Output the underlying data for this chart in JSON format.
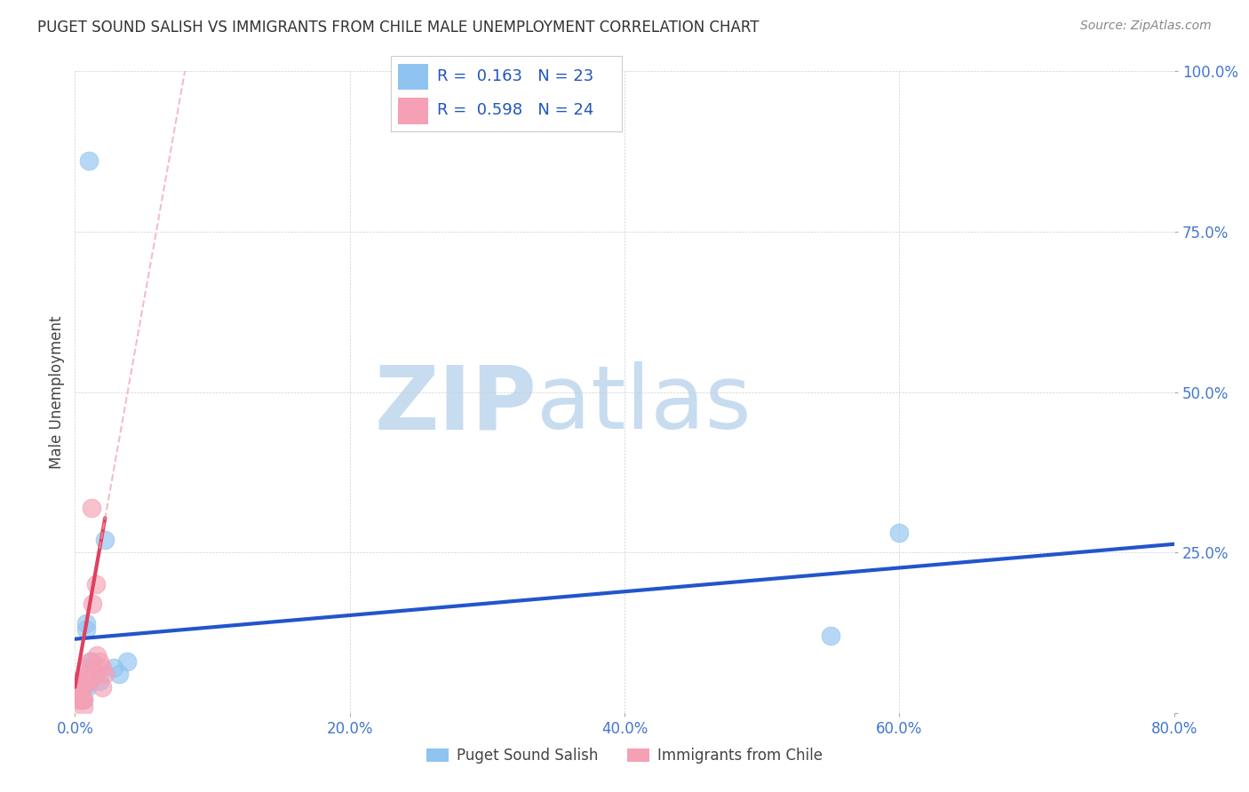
{
  "title": "PUGET SOUND SALISH VS IMMIGRANTS FROM CHILE MALE UNEMPLOYMENT CORRELATION CHART",
  "source": "Source: ZipAtlas.com",
  "ylabel": "Male Unemployment",
  "legend_bottom": [
    "Puget Sound Salish",
    "Immigrants from Chile"
  ],
  "r_blue": 0.163,
  "n_blue": 23,
  "r_pink": 0.598,
  "n_pink": 24,
  "xlim": [
    0.0,
    0.8
  ],
  "ylim": [
    0.0,
    1.0
  ],
  "xticks": [
    0.0,
    0.2,
    0.4,
    0.6,
    0.8
  ],
  "yticks": [
    0.0,
    0.25,
    0.5,
    0.75,
    1.0
  ],
  "ytick_labels": [
    "",
    "25.0%",
    "50.0%",
    "75.0%",
    "100.0%"
  ],
  "xtick_labels": [
    "0.0%",
    "20.0%",
    "40.0%",
    "60.0%",
    "80.0%"
  ],
  "blue_scatter_x": [
    0.01,
    0.003,
    0.004,
    0.005,
    0.006,
    0.003,
    0.006,
    0.007,
    0.008,
    0.008,
    0.009,
    0.01,
    0.011,
    0.012,
    0.013,
    0.015,
    0.018,
    0.022,
    0.028,
    0.032,
    0.038,
    0.6,
    0.55
  ],
  "blue_scatter_y": [
    0.86,
    0.03,
    0.02,
    0.04,
    0.02,
    0.05,
    0.04,
    0.05,
    0.13,
    0.14,
    0.04,
    0.06,
    0.05,
    0.08,
    0.07,
    0.06,
    0.05,
    0.27,
    0.07,
    0.06,
    0.08,
    0.28,
    0.12
  ],
  "pink_scatter_x": [
    0.003,
    0.004,
    0.005,
    0.006,
    0.002,
    0.003,
    0.004,
    0.005,
    0.006,
    0.007,
    0.008,
    0.008,
    0.009,
    0.01,
    0.011,
    0.012,
    0.013,
    0.015,
    0.016,
    0.018,
    0.02,
    0.022,
    0.02,
    0.015
  ],
  "pink_scatter_y": [
    0.04,
    0.03,
    0.02,
    0.01,
    0.05,
    0.02,
    0.03,
    0.04,
    0.02,
    0.05,
    0.05,
    0.07,
    0.06,
    0.05,
    0.08,
    0.32,
    0.17,
    0.2,
    0.09,
    0.08,
    0.07,
    0.06,
    0.04,
    0.06
  ],
  "blue_color": "#90C4F0",
  "pink_color": "#F5A0B5",
  "blue_line_color": "#2255CC",
  "pink_line_color": "#E04060",
  "pink_dash_color": "#F0A0B0",
  "background_color": "#FFFFFF",
  "watermark_color": "#C8DCF0",
  "blue_line_intercept": 0.115,
  "blue_line_slope": 0.185,
  "pink_line_intercept": 0.04,
  "pink_line_slope": 12.0
}
